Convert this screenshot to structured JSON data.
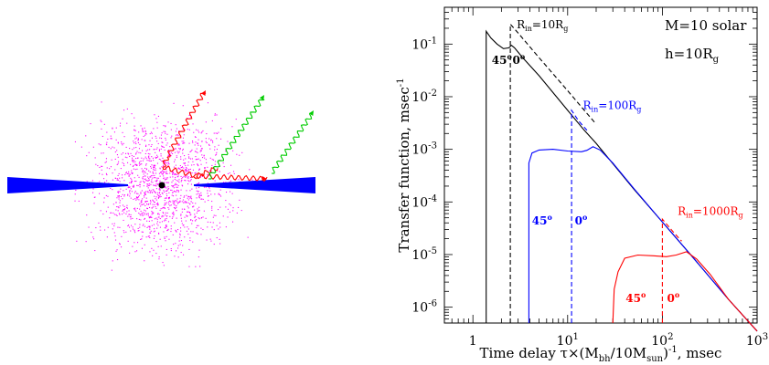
{
  "left_panel": {
    "colors": {
      "disk": "#0000ff",
      "corona": "#ff00ff",
      "black_hole": "#000000",
      "reflected_ray": "#ff0000",
      "direct_ray": "#00cc00"
    }
  },
  "chart_data": {
    "type": "line",
    "xlabel": "Time delay τ×(M_bh/10M_sun)^-1, msec",
    "ylabel": "Transfer function, msec^-1",
    "x_scale": "log",
    "y_scale": "log",
    "xlim": [
      0.5,
      1000
    ],
    "ylim": [
      5e-07,
      0.5
    ],
    "xticks": [
      {
        "value": 1,
        "label": "1"
      },
      {
        "value": 10,
        "label": "10",
        "sup": "1"
      },
      {
        "value": 100,
        "label": "10",
        "sup": "2"
      },
      {
        "value": 1000,
        "label": "10",
        "sup": "3"
      }
    ],
    "yticks": [
      {
        "value": 0.1,
        "label": "10",
        "sup": "-1"
      },
      {
        "value": 0.01,
        "label": "10",
        "sup": "-2"
      },
      {
        "value": 0.001,
        "label": "10",
        "sup": "-3"
      },
      {
        "value": 0.0001,
        "label": "10",
        "sup": "-4"
      },
      {
        "value": 1e-05,
        "label": "10",
        "sup": "-5"
      },
      {
        "value": 1e-06,
        "label": "10",
        "sup": "-6"
      }
    ],
    "annotations": {
      "mass": "M=10 solar",
      "height": "h=10R",
      "height_sub": "g"
    },
    "series": [
      {
        "label": "R",
        "label_sub": "in",
        "label_value": "=10R",
        "label_value_sub": "g",
        "color": "#000000",
        "solid_45": [
          [
            1.38,
            5e-07
          ],
          [
            1.38,
            0.175
          ],
          [
            1.55,
            0.13
          ],
          [
            1.8,
            0.1
          ],
          [
            2.1,
            0.082
          ],
          [
            2.4,
            0.085
          ],
          [
            2.55,
            0.095
          ],
          [
            2.75,
            0.085
          ],
          [
            3.3,
            0.057
          ],
          [
            5,
            0.025
          ],
          [
            10,
            0.0055
          ],
          [
            15,
            0.0023
          ],
          [
            20,
            0.0013
          ],
          [
            50,
            0.000175
          ],
          [
            100,
            4.15e-05
          ],
          [
            200,
            9.8e-06
          ],
          [
            500,
            1.4e-06
          ],
          [
            1000,
            3.5e-07
          ]
        ],
        "dashed_0": [
          [
            2.48,
            5e-07
          ],
          [
            2.48,
            0.24
          ],
          [
            3,
            0.163
          ],
          [
            5,
            0.055
          ],
          [
            10,
            0.013
          ],
          [
            15,
            0.0055
          ],
          [
            20,
            0.003
          ]
        ],
        "angle_labels": [
          {
            "text": "45",
            "deg": "o",
            "x": 1.58,
            "y": 0.042
          },
          {
            "text": "0",
            "deg": "o",
            "x": 2.62,
            "y": 0.042
          }
        ],
        "label_pos": {
          "x": 2.9,
          "y": 0.2
        }
      },
      {
        "label": "R",
        "label_sub": "in",
        "label_value": "=100R",
        "label_value_sub": "g",
        "color": "#0000ff",
        "solid_45": [
          [
            3.9,
            5e-07
          ],
          [
            3.9,
            0.00055
          ],
          [
            4.2,
            0.00085
          ],
          [
            5,
            0.00097
          ],
          [
            7,
            0.001
          ],
          [
            10,
            0.00093
          ],
          [
            14,
            0.0009
          ],
          [
            16,
            0.00096
          ],
          [
            18.5,
            0.00112
          ],
          [
            22,
            0.00097
          ],
          [
            30,
            0.00055
          ],
          [
            50,
            0.00018
          ],
          [
            100,
            4.15e-05
          ],
          [
            200,
            9.8e-06
          ],
          [
            500,
            1.4e-06
          ],
          [
            1000,
            3.5e-07
          ]
        ],
        "dashed_0": [
          [
            11,
            5e-07
          ],
          [
            11,
            0.0055
          ],
          [
            13,
            0.0035
          ],
          [
            16,
            0.0023
          ]
        ],
        "angle_labels": [
          {
            "text": "45",
            "deg": "o",
            "x": 4.2,
            "y": 3.7e-05
          },
          {
            "text": "0",
            "deg": "o",
            "x": 11.9,
            "y": 3.7e-05
          }
        ],
        "label_pos": {
          "x": 14.5,
          "y": 0.0058
        }
      },
      {
        "label": "R",
        "label_sub": "in",
        "label_value": "=1000R",
        "label_value_sub": "g",
        "color": "#ff0000",
        "solid_45": [
          [
            30,
            5e-07
          ],
          [
            31,
            2.2e-06
          ],
          [
            34,
            4.7e-06
          ],
          [
            40,
            8.5e-06
          ],
          [
            55,
            9.8e-06
          ],
          [
            80,
            9.5e-06
          ],
          [
            110,
            9.1e-06
          ],
          [
            140,
            9.8e-06
          ],
          [
            180,
            1.13e-05
          ],
          [
            230,
            8.2e-06
          ],
          [
            320,
            4.2e-06
          ],
          [
            500,
            1.4e-06
          ],
          [
            1000,
            3.5e-07
          ]
        ],
        "dashed_0": [
          [
            100,
            5e-07
          ],
          [
            100,
            4.7e-05
          ],
          [
            130,
            2.7e-05
          ],
          [
            160,
            1.8e-05
          ]
        ],
        "angle_labels": [
          {
            "text": "45",
            "deg": "o",
            "x": 41,
            "y": 1.25e-06
          },
          {
            "text": "0",
            "deg": "o",
            "x": 112,
            "y": 1.25e-06
          }
        ],
        "label_pos": {
          "x": 145,
          "y": 5.7e-05
        }
      }
    ]
  }
}
